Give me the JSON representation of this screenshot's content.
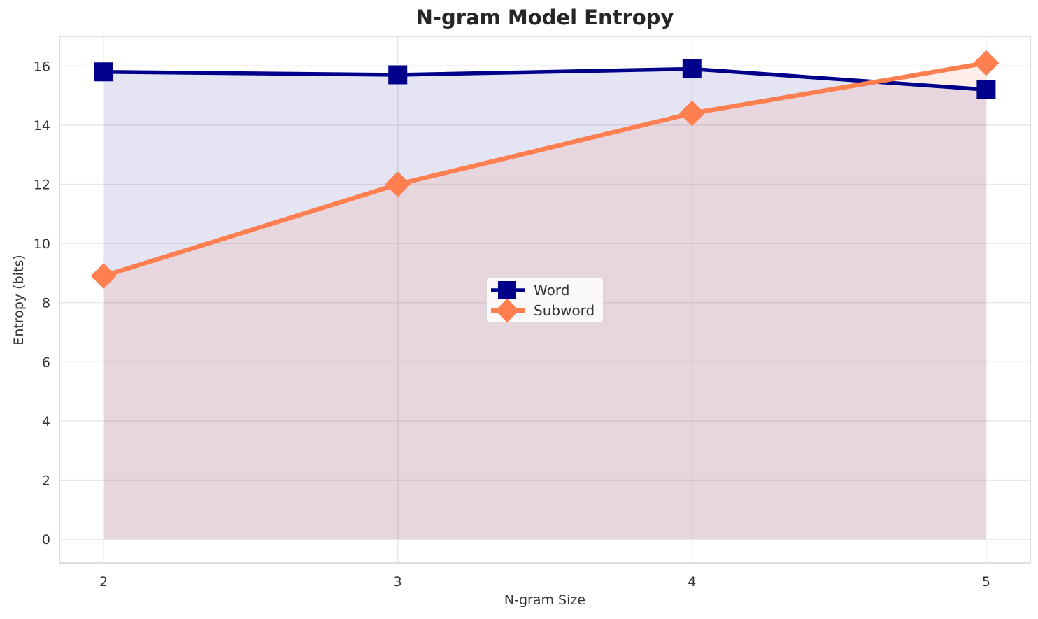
{
  "chart_data": {
    "type": "line",
    "title": "N-gram Model Entropy",
    "xlabel": "N-gram Size",
    "ylabel": "Entropy (bits)",
    "x": [
      2,
      3,
      4,
      5
    ],
    "series": [
      {
        "name": "Word",
        "color": "#00008b",
        "marker": "square",
        "values": [
          15.8,
          15.7,
          15.9,
          15.2
        ]
      },
      {
        "name": "Subword",
        "color": "#ff7f50",
        "marker": "diamond",
        "values": [
          8.9,
          12.0,
          14.4,
          16.1
        ]
      }
    ],
    "xticks": [
      "2",
      "3",
      "4",
      "5"
    ],
    "yticks": [
      0,
      2,
      4,
      6,
      8,
      10,
      12,
      14,
      16
    ],
    "xlim": [
      1.85,
      5.15
    ],
    "ylim": [
      -0.8,
      17.0
    ],
    "grid": true,
    "area_fill_to_zero": true,
    "legend_position": "center",
    "colors": {
      "grid": "#e8e8e8",
      "spine": "#d4d4d4",
      "tick_text": "#333333",
      "title_text": "#262626",
      "background": "#ffffff"
    }
  }
}
